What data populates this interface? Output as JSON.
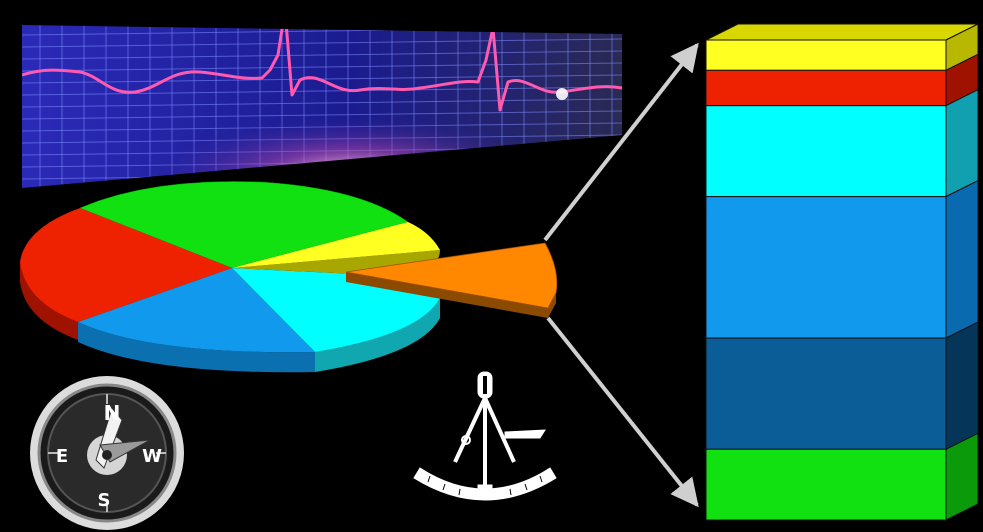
{
  "compass": {
    "north": "N",
    "south": "S",
    "east": "E",
    "west": "W"
  },
  "colors": {
    "background": "#000000",
    "ecg_trace": "#ff4fa8",
    "ecg_grid": "#6f7cff",
    "ecg_panel": "#1a1a8c",
    "pie_green": "#11e011",
    "pie_red": "#ee2200",
    "pie_blue": "#1199ee",
    "pie_cyan": "#00ffff",
    "pie_orange": "#ff8800",
    "pie_yellow": "#ffff22",
    "stack_dark_blue": "#0a5d96",
    "arrow": "#cccccc"
  },
  "chart_data": [
    {
      "type": "pie",
      "title": "",
      "slices": [
        {
          "color": "green",
          "value": 27
        },
        {
          "color": "red",
          "value": 22
        },
        {
          "color": "blue",
          "value": 24
        },
        {
          "color": "cyan",
          "value": 15
        },
        {
          "color": "orange",
          "value": 5,
          "exploded": true
        },
        {
          "color": "yellow",
          "value": 4
        },
        {
          "color": "olive",
          "value": 3
        }
      ]
    },
    {
      "type": "bar",
      "stacked": true,
      "title": "",
      "segments_top_to_bottom": [
        {
          "color": "yellow",
          "value": 6
        },
        {
          "color": "red",
          "value": 7
        },
        {
          "color": "cyan",
          "value": 18
        },
        {
          "color": "blue",
          "value": 28
        },
        {
          "color": "dark blue",
          "value": 22
        },
        {
          "color": "green",
          "value": 14
        }
      ]
    }
  ]
}
